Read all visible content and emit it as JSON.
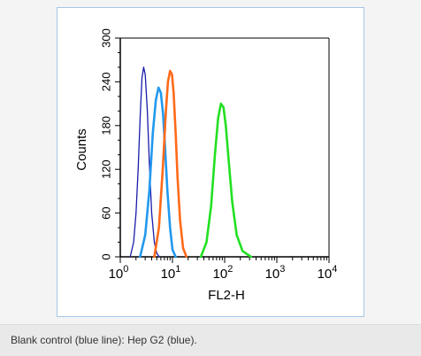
{
  "caption": "Blank control (blue line): Hep G2 (blue).",
  "colors": {
    "page_bg": "#f4f4f4",
    "frame_border": "#a9c6e8",
    "caption_bg": "#e9e9e9",
    "axis": "#000000"
  },
  "chart_data": {
    "type": "line",
    "title": "",
    "xlabel": "FL2-H",
    "ylabel": "Counts",
    "x_scale": "log",
    "xlim": [
      1,
      10000
    ],
    "ylim": [
      0,
      300
    ],
    "x_ticks": [
      {
        "value": 1,
        "base": "10",
        "exp": "0"
      },
      {
        "value": 10,
        "base": "10",
        "exp": "1"
      },
      {
        "value": 100,
        "base": "10",
        "exp": "2"
      },
      {
        "value": 1000,
        "base": "10",
        "exp": "3"
      },
      {
        "value": 10000,
        "base": "10",
        "exp": "4"
      }
    ],
    "y_ticks": [
      "0",
      "60",
      "120",
      "180",
      "240",
      "300"
    ],
    "y_tick_values": [
      0,
      60,
      120,
      180,
      240,
      300
    ],
    "legend": "none",
    "grid": false,
    "series": [
      {
        "color": "#1b1baa",
        "x": [
          1.55,
          1.8,
          2.0,
          2.2,
          2.4,
          2.6,
          2.8,
          3.0,
          3.3,
          3.6,
          4.0,
          4.5,
          5.0,
          5.6
        ],
        "y": [
          0,
          20,
          60,
          120,
          190,
          245,
          260,
          250,
          200,
          130,
          60,
          20,
          5,
          0
        ]
      },
      {
        "color": "#2299ee",
        "x": [
          2.4,
          3.0,
          3.6,
          4.2,
          4.8,
          5.4,
          6.0,
          6.6,
          7.2,
          8.0,
          9.0,
          10.0,
          11.5
        ],
        "y": [
          0,
          30,
          90,
          170,
          215,
          232,
          225,
          195,
          150,
          90,
          40,
          10,
          0
        ]
      },
      {
        "color": "#ff6a1a",
        "x": [
          4.5,
          5.5,
          6.5,
          7.5,
          8.2,
          9.0,
          9.8,
          10.5,
          11.5,
          12.5,
          14.0,
          16.0,
          18.5
        ],
        "y": [
          0,
          40,
          120,
          200,
          240,
          255,
          250,
          225,
          170,
          110,
          50,
          12,
          0
        ]
      },
      {
        "color": "#22e022",
        "x": [
          35,
          45,
          55,
          65,
          75,
          85,
          95,
          105,
          120,
          140,
          170,
          220,
          320
        ],
        "y": [
          0,
          20,
          70,
          140,
          190,
          210,
          205,
          180,
          130,
          75,
          30,
          8,
          0
        ]
      }
    ]
  }
}
